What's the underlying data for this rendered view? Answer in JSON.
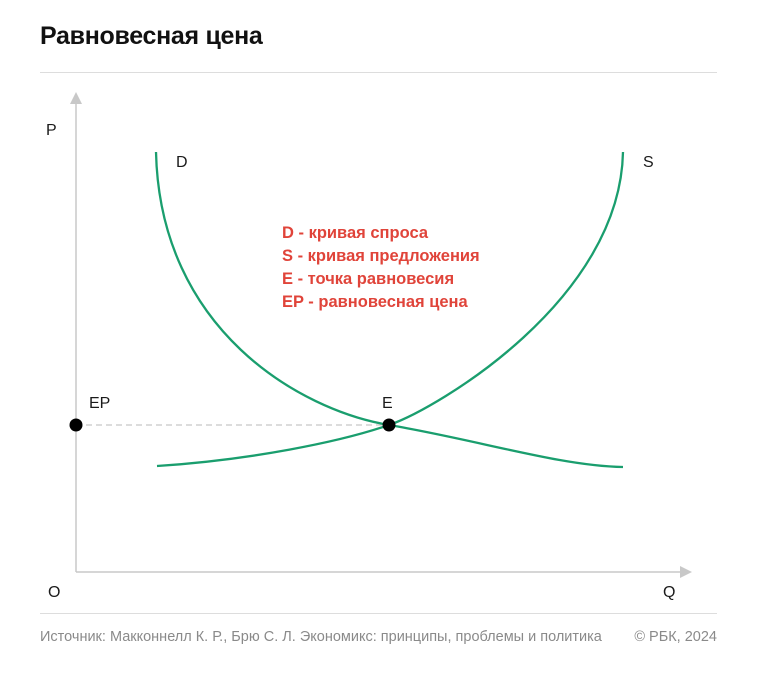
{
  "title": "Равновесная цена",
  "source": "Источник: Макконнелл К. Р., Брю С. Л. Экономикс: принципы, проблемы и политика",
  "copyright": "© РБК, 2024",
  "colors": {
    "curve": "#1a9e6e",
    "legend": "#e0443a",
    "axis": "#c8c8c8",
    "point": "#000000"
  },
  "chart_data": {
    "type": "line",
    "xlabel": "Q",
    "ylabel": "P",
    "origin_label": "O",
    "series": [
      {
        "name": "D",
        "label": "D"
      },
      {
        "name": "S",
        "label": "S"
      }
    ],
    "points": [
      {
        "name": "E",
        "label": "E"
      },
      {
        "name": "EP",
        "label": "EP"
      }
    ],
    "legend": [
      "D - кривая спроса",
      "S - кривая предложения",
      "E - точка равновесия",
      "EP - равновесная цена"
    ]
  }
}
